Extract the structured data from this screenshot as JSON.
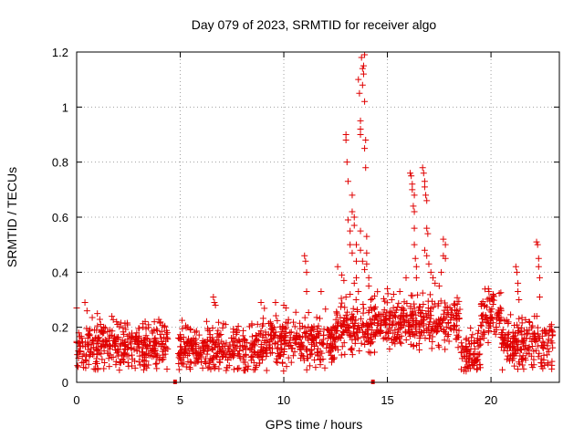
{
  "chart_data": {
    "type": "scatter",
    "title": "Day 079 of 2023, SRMTID for receiver algo",
    "xlabel": "GPS time / hours",
    "ylabel": "SRMTID / TECUs",
    "xlim": [
      0,
      23.3
    ],
    "ylim": [
      0,
      1.2
    ],
    "xticks": [
      0,
      5,
      10,
      15,
      20
    ],
    "xtick_labels": [
      "0",
      "5",
      "10",
      "15",
      "20"
    ],
    "yticks": [
      0,
      0.2,
      0.4,
      0.6,
      0.8,
      1.0,
      1.2
    ],
    "ytick_labels": [
      "0",
      "0.2",
      "0.4",
      "0.6",
      "0.8",
      "1",
      "1.2"
    ],
    "grid": true,
    "marker": "+",
    "series_color": "#e00000",
    "gap_markers_x": [
      4.75,
      14.3
    ],
    "baseline_segments": [
      {
        "x_start": 0.0,
        "x_end": 4.4,
        "base": 0.13
      },
      {
        "x_start": 4.9,
        "x_end": 9.0,
        "base": 0.12
      },
      {
        "x_start": 9.0,
        "x_end": 12.5,
        "base": 0.15
      },
      {
        "x_start": 12.5,
        "x_end": 14.3,
        "base": 0.2
      },
      {
        "x_start": 14.3,
        "x_end": 18.5,
        "base": 0.22
      },
      {
        "x_start": 18.5,
        "x_end": 19.5,
        "base": 0.1
      },
      {
        "x_start": 19.5,
        "x_end": 20.5,
        "base": 0.24
      },
      {
        "x_start": 20.5,
        "x_end": 23.0,
        "base": 0.14
      }
    ],
    "points": [
      [
        0.0,
        0.27
      ],
      [
        0.1,
        0.18
      ],
      [
        0.4,
        0.29
      ],
      [
        0.5,
        0.26
      ],
      [
        1.0,
        0.25
      ],
      [
        1.7,
        0.24
      ],
      [
        3.2,
        0.2
      ],
      [
        4.0,
        0.08
      ],
      [
        6.6,
        0.31
      ],
      [
        6.65,
        0.29
      ],
      [
        6.7,
        0.28
      ],
      [
        8.9,
        0.29
      ],
      [
        9.6,
        0.29
      ],
      [
        10.0,
        0.28
      ],
      [
        10.1,
        0.27
      ],
      [
        11.0,
        0.46
      ],
      [
        11.05,
        0.44
      ],
      [
        11.1,
        0.4
      ],
      [
        11.1,
        0.33
      ],
      [
        11.8,
        0.33
      ],
      [
        12.6,
        0.42
      ],
      [
        12.8,
        0.39
      ],
      [
        12.9,
        0.37
      ],
      [
        13.0,
        0.9
      ],
      [
        13.0,
        0.88
      ],
      [
        13.05,
        0.8
      ],
      [
        13.1,
        0.73
      ],
      [
        13.1,
        0.59
      ],
      [
        13.2,
        0.55
      ],
      [
        13.2,
        0.5
      ],
      [
        13.3,
        0.68
      ],
      [
        13.3,
        0.62
      ],
      [
        13.3,
        0.47
      ],
      [
        13.4,
        0.6
      ],
      [
        13.4,
        0.57
      ],
      [
        13.5,
        0.5
      ],
      [
        13.5,
        0.44
      ],
      [
        13.6,
        1.1
      ],
      [
        13.65,
        1.05
      ],
      [
        13.7,
        0.95
      ],
      [
        13.7,
        0.92
      ],
      [
        13.7,
        0.9
      ],
      [
        13.75,
        1.18
      ],
      [
        13.8,
        1.14
      ],
      [
        13.8,
        1.08
      ],
      [
        13.85,
        1.15
      ],
      [
        13.85,
        1.12
      ],
      [
        13.9,
        1.19
      ],
      [
        13.9,
        1.02
      ],
      [
        13.9,
        0.85
      ],
      [
        13.95,
        0.88
      ],
      [
        13.95,
        0.78
      ],
      [
        13.7,
        0.55
      ],
      [
        13.7,
        0.48
      ],
      [
        13.8,
        0.44
      ],
      [
        13.9,
        0.41
      ],
      [
        14.0,
        0.53
      ],
      [
        14.0,
        0.47
      ],
      [
        14.0,
        0.43
      ],
      [
        14.1,
        0.38
      ],
      [
        14.1,
        0.35
      ],
      [
        13.6,
        0.33
      ],
      [
        13.5,
        0.38
      ],
      [
        13.4,
        0.36
      ],
      [
        13.2,
        0.32
      ],
      [
        13.0,
        0.31
      ],
      [
        15.0,
        0.34
      ],
      [
        15.3,
        0.32
      ],
      [
        15.6,
        0.33
      ],
      [
        15.9,
        0.38
      ],
      [
        16.1,
        0.76
      ],
      [
        16.15,
        0.75
      ],
      [
        16.2,
        0.72
      ],
      [
        16.2,
        0.7
      ],
      [
        16.25,
        0.64
      ],
      [
        16.3,
        0.68
      ],
      [
        16.3,
        0.62
      ],
      [
        16.3,
        0.56
      ],
      [
        16.3,
        0.5
      ],
      [
        16.35,
        0.45
      ],
      [
        16.4,
        0.42
      ],
      [
        16.4,
        0.38
      ],
      [
        16.7,
        0.78
      ],
      [
        16.75,
        0.76
      ],
      [
        16.8,
        0.73
      ],
      [
        16.8,
        0.71
      ],
      [
        16.85,
        0.68
      ],
      [
        16.9,
        0.66
      ],
      [
        16.9,
        0.56
      ],
      [
        16.95,
        0.54
      ],
      [
        16.8,
        0.48
      ],
      [
        16.9,
        0.46
      ],
      [
        17.0,
        0.43
      ],
      [
        17.1,
        0.4
      ],
      [
        17.2,
        0.38
      ],
      [
        17.3,
        0.36
      ],
      [
        17.5,
        0.35
      ],
      [
        17.6,
        0.4
      ],
      [
        17.7,
        0.46
      ],
      [
        17.7,
        0.52
      ],
      [
        17.8,
        0.5
      ],
      [
        17.8,
        0.45
      ],
      [
        18.8,
        0.04
      ],
      [
        19.0,
        0.05
      ],
      [
        19.2,
        0.07
      ],
      [
        19.9,
        0.33
      ],
      [
        20.1,
        0.32
      ],
      [
        21.2,
        0.42
      ],
      [
        21.25,
        0.4
      ],
      [
        21.3,
        0.36
      ],
      [
        21.3,
        0.33
      ],
      [
        21.35,
        0.3
      ],
      [
        22.1,
        0.24
      ],
      [
        22.2,
        0.51
      ],
      [
        22.25,
        0.5
      ],
      [
        22.3,
        0.45
      ],
      [
        22.3,
        0.42
      ],
      [
        22.35,
        0.38
      ],
      [
        22.35,
        0.31
      ],
      [
        22.5,
        0.05
      ],
      [
        22.6,
        0.18
      ],
      [
        22.9,
        0.15
      ]
    ]
  }
}
